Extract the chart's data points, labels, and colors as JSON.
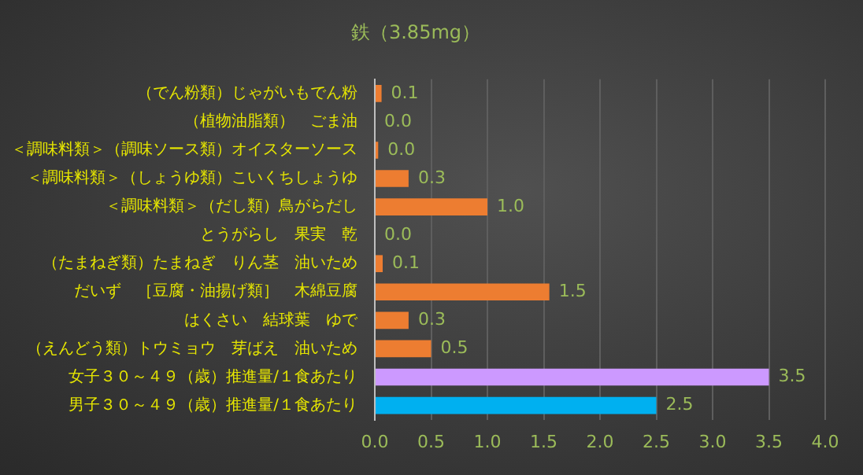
{
  "chart_data": {
    "type": "bar",
    "orientation": "horizontal",
    "title": "鉄（3.85mg）",
    "categories": [
      "（でん粉類）じゃがいもでん粉",
      "（植物油脂類）　ごま油",
      "＜調味料類＞（調味ソース類）オイスターソース",
      "＜調味料類＞（しょうゆ類）こいくちしょうゆ",
      "＜調味料類＞（だし類）鳥がらだし",
      "とうがらし　果実　乾",
      "（たまねぎ類）たまねぎ　りん茎　油いため",
      "だいず　［豆腐・油揚げ類］　木綿豆腐",
      "はくさい　結球葉　ゆで",
      "（えんどう類）トウミョウ　芽ばえ　油いため",
      "女子３０～４９（歳）推進量/１食あたり",
      "男子３０～４９（歳）推進量/１食あたり"
    ],
    "values": [
      0.06,
      0,
      0.03,
      0.3,
      1.0,
      0,
      0.07,
      1.55,
      0.3,
      0.5,
      3.5,
      2.5
    ],
    "value_labels": [
      "0.1",
      "0.0",
      "0.0",
      "0.3",
      "1.0",
      "0.0",
      "0.1",
      "1.5",
      "0.3",
      "0.5",
      "3.5",
      "2.5"
    ],
    "colors": [
      "#ed7d31",
      "#ed7d31",
      "#ed7d31",
      "#ed7d31",
      "#ed7d31",
      "#ed7d31",
      "#ed7d31",
      "#ed7d31",
      "#ed7d31",
      "#ed7d31",
      "#cc99ff",
      "#00b0f0"
    ],
    "xlim": [
      0,
      4
    ],
    "xticks": [
      {
        "value": 0,
        "label": "0.0"
      },
      {
        "value": 0.5,
        "label": "0.5"
      },
      {
        "value": 1,
        "label": "1.0"
      },
      {
        "value": 1.5,
        "label": "1.5"
      },
      {
        "value": 2,
        "label": "2.0"
      },
      {
        "value": 2.5,
        "label": "2.5"
      },
      {
        "value": 3,
        "label": "3.0"
      },
      {
        "value": 3.5,
        "label": "3.5"
      },
      {
        "value": 4,
        "label": "4.0"
      }
    ],
    "grid": "x",
    "legend": false
  }
}
